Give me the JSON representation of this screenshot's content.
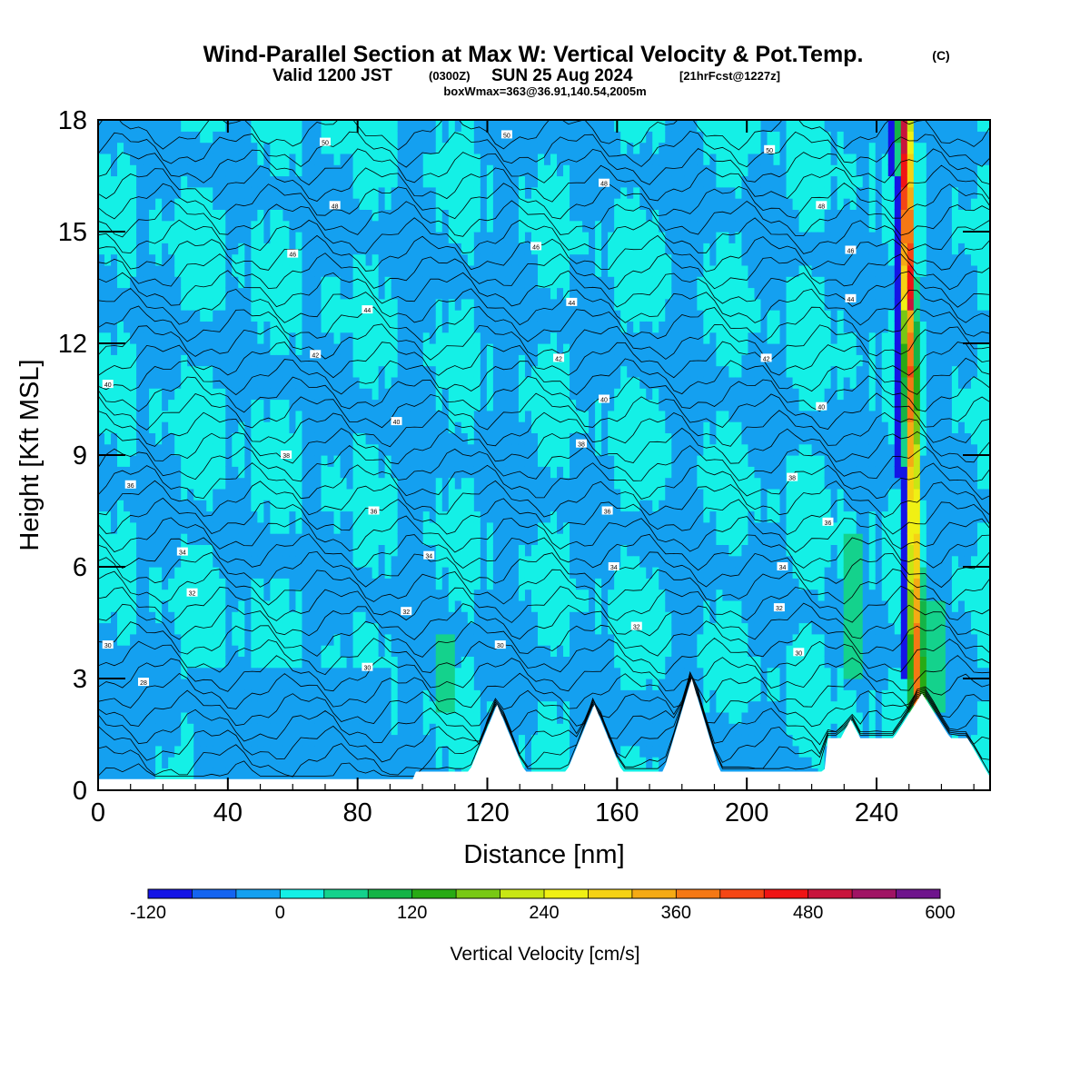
{
  "title": {
    "main": "Wind-Parallel Section at Max W: Vertical Velocity & Pot.Temp.",
    "copyright": "(C)",
    "valid_prefix": "Valid 1200 JST",
    "valid_z": "(0300Z)",
    "valid_date": "SUN 25 Aug 2024",
    "forecast": "[21hrFcst@1227z]",
    "box": "boxWmax=363@36.91,140.54,2005m"
  },
  "chart_data": {
    "type": "heatmap",
    "xlabel": "Distance [nm]",
    "ylabel": "Height [Kft MSL]",
    "xlim": [
      0,
      275
    ],
    "ylim": [
      0,
      18
    ],
    "x_ticks": [
      "0",
      "40",
      "80",
      "120",
      "160",
      "200",
      "240"
    ],
    "x_tick_values": [
      0,
      40,
      80,
      120,
      160,
      200,
      240
    ],
    "y_ticks": [
      "0",
      "3",
      "6",
      "9",
      "12",
      "15",
      "18"
    ],
    "y_tick_values": [
      0,
      3,
      6,
      9,
      12,
      15,
      18
    ],
    "colorbar": {
      "label": "Vertical Velocity [cm/s]",
      "min": -120,
      "max": 600,
      "step": 40,
      "tick_labels": [
        "-120",
        "0",
        "120",
        "240",
        "360",
        "480",
        "600"
      ],
      "tick_values": [
        -120,
        0,
        120,
        240,
        360,
        480,
        600
      ],
      "colors": [
        "#1414e6",
        "#1464f0",
        "#14a0f0",
        "#14f0e6",
        "#14d28c",
        "#14b446",
        "#28aa14",
        "#78c814",
        "#c8e614",
        "#f0f014",
        "#f5d214",
        "#f5aa14",
        "#f57814",
        "#f54614",
        "#f01414",
        "#c8143c",
        "#a01464",
        "#6e148c"
      ]
    },
    "terrain_peaks_kft": [
      {
        "x": 123,
        "h": 2.3
      },
      {
        "x": 153,
        "h": 2.3
      },
      {
        "x": 183,
        "h": 3.0
      },
      {
        "x": 232,
        "h": 1.9
      },
      {
        "x": 254,
        "h": 2.6
      }
    ],
    "updraft_core": {
      "x": 251,
      "w_max_cm_s": 363
    },
    "theta_contour_labels": [
      {
        "value": "28",
        "x": 14,
        "y": 2.9
      },
      {
        "value": "30",
        "x": 3,
        "y": 3.9
      },
      {
        "value": "30",
        "x": 83,
        "y": 3.3
      },
      {
        "value": "30",
        "x": 124,
        "y": 3.9
      },
      {
        "value": "30",
        "x": 216,
        "y": 3.7
      },
      {
        "value": "32",
        "x": 29,
        "y": 5.3
      },
      {
        "value": "32",
        "x": 95,
        "y": 4.8
      },
      {
        "value": "32",
        "x": 166,
        "y": 4.4
      },
      {
        "value": "32",
        "x": 210,
        "y": 4.9
      },
      {
        "value": "34",
        "x": 26,
        "y": 6.4
      },
      {
        "value": "34",
        "x": 102,
        "y": 6.3
      },
      {
        "value": "34",
        "x": 159,
        "y": 6.0
      },
      {
        "value": "34",
        "x": 211,
        "y": 6.0
      },
      {
        "value": "36",
        "x": 10,
        "y": 8.2
      },
      {
        "value": "36",
        "x": 85,
        "y": 7.5
      },
      {
        "value": "36",
        "x": 157,
        "y": 7.5
      },
      {
        "value": "36",
        "x": 225,
        "y": 7.2
      },
      {
        "value": "38",
        "x": 58,
        "y": 9.0
      },
      {
        "value": "38",
        "x": 149,
        "y": 9.3
      },
      {
        "value": "38",
        "x": 214,
        "y": 8.4
      },
      {
        "value": "40",
        "x": 3,
        "y": 10.9
      },
      {
        "value": "40",
        "x": 92,
        "y": 9.9
      },
      {
        "value": "40",
        "x": 156,
        "y": 10.5
      },
      {
        "value": "40",
        "x": 223,
        "y": 10.3
      },
      {
        "value": "42",
        "x": 67,
        "y": 11.7
      },
      {
        "value": "42",
        "x": 142,
        "y": 11.6
      },
      {
        "value": "42",
        "x": 206,
        "y": 11.6
      },
      {
        "value": "44",
        "x": 83,
        "y": 12.9
      },
      {
        "value": "44",
        "x": 146,
        "y": 13.1
      },
      {
        "value": "44",
        "x": 232,
        "y": 13.2
      },
      {
        "value": "46",
        "x": 60,
        "y": 14.4
      },
      {
        "value": "46",
        "x": 135,
        "y": 14.6
      },
      {
        "value": "46",
        "x": 232,
        "y": 14.5
      },
      {
        "value": "48",
        "x": 73,
        "y": 15.7
      },
      {
        "value": "48",
        "x": 156,
        "y": 16.3
      },
      {
        "value": "48",
        "x": 223,
        "y": 15.7
      },
      {
        "value": "50",
        "x": 70,
        "y": 17.4
      },
      {
        "value": "50",
        "x": 126,
        "y": 17.6
      },
      {
        "value": "50",
        "x": 207,
        "y": 17.2
      }
    ]
  }
}
